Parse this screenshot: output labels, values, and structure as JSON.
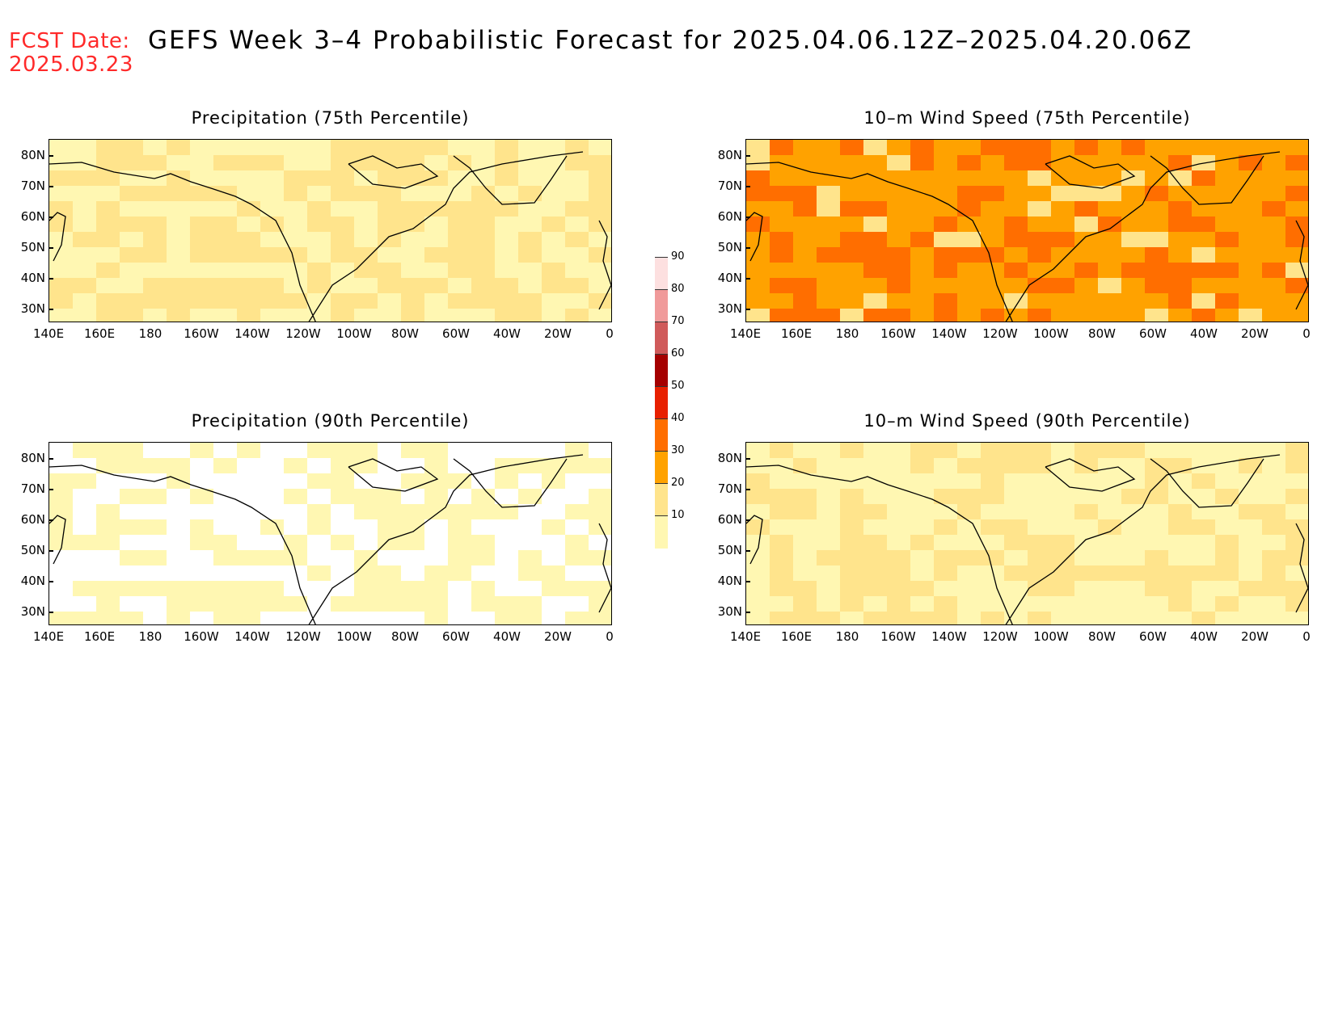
{
  "fcst_label": "FCST Date:",
  "fcst_date": "2025.03.23",
  "title": "GEFS Week 3–4 Probabilistic Forecast for 2025.04.06.12Z–2025.04.20.06Z",
  "panels": [
    {
      "title": "Precipitation (75th Percentile)",
      "field": "precip75"
    },
    {
      "title": "10–m Wind Speed (75th Percentile)",
      "field": "wind75"
    },
    {
      "title": "Precipitation (90th Percentile)",
      "field": "precip90"
    },
    {
      "title": "10–m Wind Speed (90th Percentile)",
      "field": "wind90"
    }
  ],
  "lat_labels": [
    "80N",
    "70N",
    "60N",
    "50N",
    "40N",
    "30N"
  ],
  "lon_labels": [
    "140E",
    "160E",
    "180",
    "160W",
    "140W",
    "120W",
    "100W",
    "80W",
    "60W",
    "40W",
    "20W",
    "0"
  ],
  "colorbar": {
    "levels": [
      "10",
      "20",
      "30",
      "40",
      "50",
      "60",
      "70",
      "80",
      "90"
    ],
    "colors": [
      "#fff7b2",
      "#ffe48c",
      "#ffa200",
      "#ff6e00",
      "#e82000",
      "#a50000",
      "#d05a5a",
      "#f09a9a",
      "#fde0e0"
    ]
  }
}
